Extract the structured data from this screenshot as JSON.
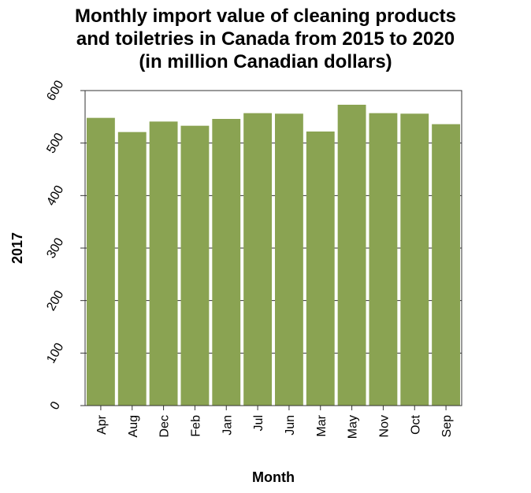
{
  "chart_data": {
    "type": "bar",
    "title_lines": [
      "Monthly import value of cleaning products",
      "and toiletries in Canada from 2015 to 2020",
      "(in million Canadian dollars)"
    ],
    "xlabel": "Month",
    "ylabel": "2017",
    "categories": [
      "Apr",
      "Aug",
      "Dec",
      "Feb",
      "Jan",
      "Jul",
      "Jun",
      "Mar",
      "May",
      "Nov",
      "Oct",
      "Sep"
    ],
    "values": [
      548,
      521,
      541,
      533,
      546,
      557,
      556,
      522,
      573,
      557,
      556,
      536
    ],
    "ylim": [
      0,
      600
    ],
    "yticks": [
      "0",
      "100",
      "200",
      "300",
      "400",
      "500",
      "600"
    ],
    "grid": true,
    "legend": "none",
    "bar_color": "#8aa352",
    "grid_color": "#333333"
  }
}
